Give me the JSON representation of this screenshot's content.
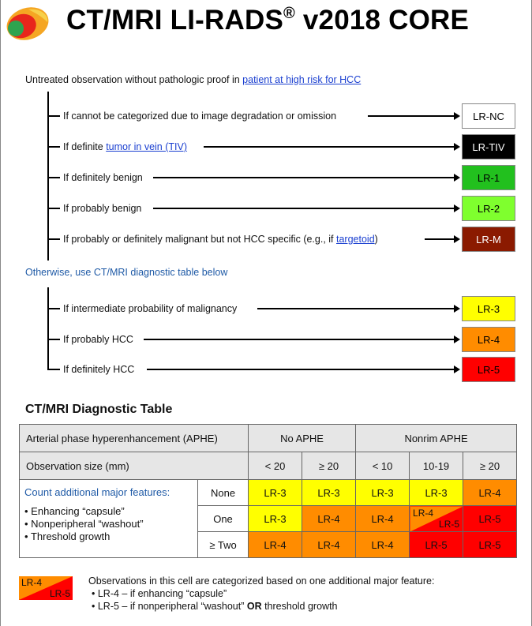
{
  "header": {
    "title_main": "CT/MRI LI-RADS",
    "title_reg": "®",
    "title_rest": " v2018 CORE"
  },
  "intro": {
    "text": "Untreated observation without pathologic proof in ",
    "link": "patient at high risk for HCC"
  },
  "flow_top": [
    {
      "pre": "If cannot be categorized due to image degradation or omission",
      "link": "",
      "post": "",
      "category": "LR-NC",
      "bg": "#ffffff",
      "fg": "#000000"
    },
    {
      "pre": "If definite ",
      "link": "tumor in vein (TIV)",
      "post": "",
      "category": "LR-TIV",
      "bg": "#000000",
      "fg": "#ffffff"
    },
    {
      "pre": "If definitely benign",
      "link": "",
      "post": "",
      "category": "LR-1",
      "bg": "#22c01e",
      "fg": "#000000"
    },
    {
      "pre": "If probably benign",
      "link": "",
      "post": "",
      "category": "LR-2",
      "bg": "#7fff2e",
      "fg": "#000000"
    },
    {
      "pre": "If probably or definitely malignant but not HCC specific (e.g., if ",
      "link": "targetoid",
      "post": ")",
      "category": "LR-M",
      "bg": "#8b1a00",
      "fg": "#ffffff"
    }
  ],
  "otherwise": "Otherwise, use CT/MRI diagnostic table below",
  "flow_bottom": [
    {
      "pre": "If intermediate probability of malignancy",
      "category": "LR-3",
      "bg": "#ffff00",
      "fg": "#000000"
    },
    {
      "pre": "If probably HCC",
      "category": "LR-4",
      "bg": "#ff8c00",
      "fg": "#000000"
    },
    {
      "pre": "If definitely HCC",
      "category": "LR-5",
      "bg": "#ff0000",
      "fg": "#000000"
    }
  ],
  "table": {
    "title": "CT/MRI Diagnostic Table",
    "aphe_label": "Arterial phase hyperenhancement (APHE)",
    "no_aphe": "No APHE",
    "nonrim_aphe": "Nonrim APHE",
    "size_label": "Observation size (mm)",
    "sizes": [
      "< 20",
      "≥ 20",
      "< 10",
      "10-19",
      "≥ 20"
    ],
    "features_title": "Count additional major features:",
    "features": [
      "Enhancing “capsule”",
      "Nonperipheral “washout”",
      "Threshold growth"
    ],
    "rows": [
      {
        "label": "None",
        "cells": [
          "LR-3",
          "LR-3",
          "LR-3",
          "LR-3",
          "LR-4"
        ]
      },
      {
        "label": "One",
        "cells": [
          "LR-3",
          "LR-4",
          "LR-4",
          "",
          "LR-5"
        ],
        "split": {
          "a": "LR-4",
          "b": "LR-5"
        }
      },
      {
        "label": "≥ Two",
        "cells": [
          "LR-4",
          "LR-4",
          "LR-4",
          "LR-5",
          "LR-5"
        ]
      }
    ]
  },
  "footnote": {
    "swatch_a": "LR-4",
    "swatch_b": "LR-5",
    "intro": "Observations in this cell are categorized based on one additional major feature:",
    "item1": "LR-4 – if enhancing “capsule”",
    "item2_pre": "LR-5 – if nonperipheral “washout” ",
    "item2_bold": "OR",
    "item2_post": " threshold growth"
  },
  "colors": {
    "lr3": "#ffff00",
    "lr4": "#ff8c00",
    "lr5": "#ff0000",
    "link": "#1a3fd0",
    "accent_blue": "#1f5aa6"
  }
}
